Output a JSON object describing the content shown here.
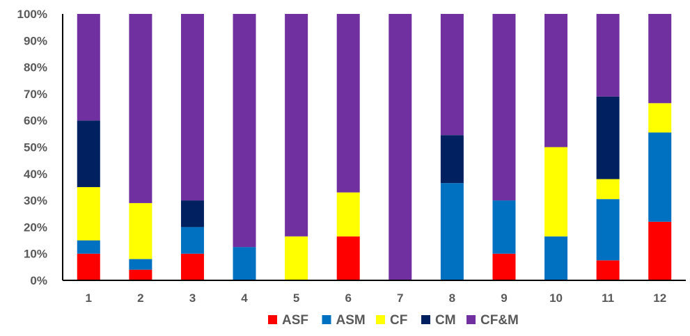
{
  "chart_data": {
    "type": "bar",
    "stacked": true,
    "percent": true,
    "categories": [
      "1",
      "2",
      "3",
      "4",
      "5",
      "6",
      "7",
      "8",
      "9",
      "10",
      "11",
      "12"
    ],
    "series": [
      {
        "name": "ASF",
        "color": "#ff0000",
        "values": [
          10,
          4,
          10,
          0,
          0,
          16.5,
          0,
          0,
          10,
          0,
          7.5,
          22
        ]
      },
      {
        "name": "ASM",
        "color": "#0070c0",
        "values": [
          5,
          4,
          10,
          12.5,
          0,
          0,
          0,
          36.5,
          20,
          16.5,
          23,
          33.5
        ]
      },
      {
        "name": "CF",
        "color": "#ffff00",
        "values": [
          20,
          21,
          0,
          0,
          16.5,
          16.5,
          0,
          0,
          0,
          33.5,
          7.5,
          11
        ]
      },
      {
        "name": "CM",
        "color": "#002060",
        "values": [
          25,
          0,
          10,
          0,
          0,
          0,
          0,
          18,
          0,
          0,
          31,
          0
        ]
      },
      {
        "name": "CF&M",
        "color": "#7030a0",
        "values": [
          40,
          71,
          70,
          87.5,
          83.5,
          67,
          100,
          45.5,
          70,
          50,
          31,
          33.5
        ]
      }
    ],
    "ylim": [
      0,
      100
    ],
    "yticks": [
      "0%",
      "10%",
      "20%",
      "30%",
      "40%",
      "50%",
      "60%",
      "70%",
      "80%",
      "90%",
      "100%"
    ],
    "title": "",
    "xlabel": "",
    "ylabel": "",
    "legend": "bottom",
    "grid": false
  }
}
